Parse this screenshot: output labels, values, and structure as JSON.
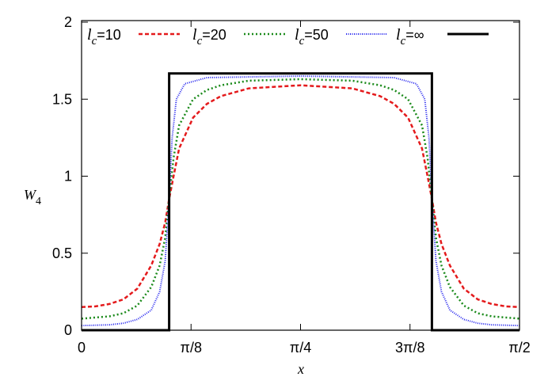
{
  "chart_data": {
    "type": "line",
    "xlabel": "x",
    "ylabel_main": "W",
    "ylabel_sub": "4",
    "xlim": [
      0,
      1.5708
    ],
    "ylim": [
      0,
      2
    ],
    "x_ticks": [
      {
        "value": 0,
        "label": "0"
      },
      {
        "value": 0.3927,
        "label": "π/8"
      },
      {
        "value": 0.7854,
        "label": "π/4"
      },
      {
        "value": 1.1781,
        "label": "3π/8"
      },
      {
        "value": 1.5708,
        "label": "π/2"
      }
    ],
    "y_ticks": [
      {
        "value": 0,
        "label": "0"
      },
      {
        "value": 0.5,
        "label": "0.5"
      },
      {
        "value": 1,
        "label": "1"
      },
      {
        "value": 1.5,
        "label": "1.5"
      },
      {
        "value": 2,
        "label": "2"
      }
    ],
    "grid": false,
    "legend_placement": "top",
    "series": [
      {
        "name_main": "l",
        "name_sub": "c",
        "name_rest": "=10",
        "color": "#e41a1c",
        "dash": "5,3",
        "width": 2.5,
        "x": [
          0,
          0.05,
          0.1,
          0.15,
          0.2,
          0.25,
          0.28,
          0.3,
          0.314,
          0.33,
          0.35,
          0.4,
          0.45,
          0.5,
          0.6,
          0.785,
          0.971,
          1.071,
          1.121,
          1.171,
          1.221,
          1.241,
          1.257,
          1.271,
          1.291,
          1.321,
          1.371,
          1.421,
          1.471,
          1.521,
          1.571
        ],
        "y": [
          0.15,
          0.155,
          0.17,
          0.2,
          0.27,
          0.42,
          0.56,
          0.7,
          0.85,
          1.0,
          1.18,
          1.38,
          1.47,
          1.52,
          1.57,
          1.59,
          1.57,
          1.52,
          1.47,
          1.38,
          1.18,
          1.0,
          0.85,
          0.7,
          0.56,
          0.42,
          0.27,
          0.2,
          0.17,
          0.155,
          0.15
        ]
      },
      {
        "name_main": "l",
        "name_sub": "c",
        "name_rest": "=20",
        "color": "#1a8a1a",
        "dash": "2,3",
        "width": 2.5,
        "x": [
          0,
          0.1,
          0.15,
          0.2,
          0.25,
          0.28,
          0.3,
          0.314,
          0.33,
          0.35,
          0.4,
          0.45,
          0.5,
          0.6,
          0.785,
          0.971,
          1.071,
          1.121,
          1.171,
          1.221,
          1.241,
          1.257,
          1.271,
          1.291,
          1.321,
          1.371,
          1.421,
          1.471,
          1.571
        ],
        "y": [
          0.075,
          0.09,
          0.11,
          0.16,
          0.28,
          0.42,
          0.6,
          0.85,
          1.12,
          1.33,
          1.5,
          1.56,
          1.59,
          1.62,
          1.63,
          1.62,
          1.59,
          1.56,
          1.5,
          1.33,
          1.12,
          0.85,
          0.6,
          0.42,
          0.28,
          0.16,
          0.11,
          0.09,
          0.075
        ]
      },
      {
        "name_main": "l",
        "name_sub": "c",
        "name_rest": "=50",
        "color": "#2222ee",
        "dash": "1,1.5",
        "width": 2,
        "x": [
          0,
          0.1,
          0.15,
          0.2,
          0.25,
          0.28,
          0.3,
          0.314,
          0.325,
          0.34,
          0.37,
          0.45,
          0.785,
          1.121,
          1.201,
          1.231,
          1.246,
          1.257,
          1.271,
          1.291,
          1.321,
          1.371,
          1.421,
          1.471,
          1.571
        ],
        "y": [
          0.03,
          0.035,
          0.045,
          0.07,
          0.13,
          0.25,
          0.45,
          0.85,
          1.25,
          1.5,
          1.6,
          1.64,
          1.65,
          1.64,
          1.6,
          1.5,
          1.25,
          0.85,
          0.45,
          0.25,
          0.13,
          0.07,
          0.045,
          0.035,
          0.03
        ]
      },
      {
        "name_main": "l",
        "name_sub": "c",
        "name_rest": "=∞",
        "color": "#000000",
        "dash": "",
        "width": 3,
        "x": [
          0,
          0.3142,
          0.3142,
          1.2566,
          1.2566,
          1.5708
        ],
        "y": [
          0,
          0,
          1.6667,
          1.6667,
          0,
          0
        ]
      }
    ]
  }
}
